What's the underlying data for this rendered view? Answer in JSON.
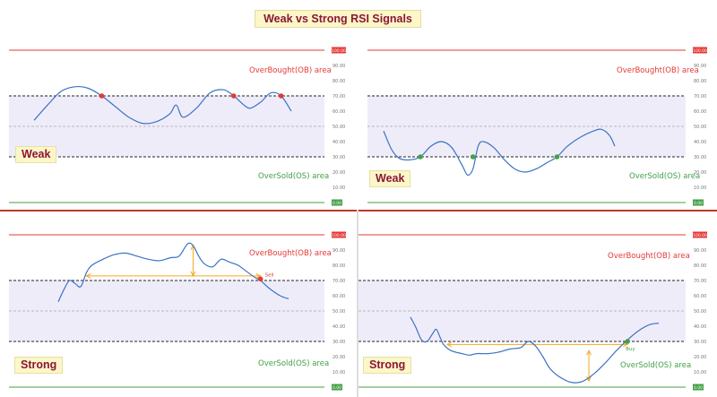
{
  "page_title": "Weak vs Strong RSI Signals",
  "colors": {
    "overbought": "#e53935",
    "oversold": "#43a047",
    "line": "#3b73c4",
    "band_fill": "#efecfa",
    "arrow": "#f5a623",
    "tag_bg": "#fbf7c7",
    "tag_text": "#8b1538"
  },
  "chart_data": [
    {
      "type": "line",
      "title": "Weak",
      "badge": "Weak",
      "ylim": [
        0,
        100
      ],
      "yticks": [
        "90.00",
        "80.00",
        "70.00",
        "60.00",
        "50.00",
        "40.00",
        "30.00",
        "20.00",
        "10.00"
      ],
      "top_label": "100.00",
      "bottom_label": "0.00",
      "ob_label": "OverBought(OB) area",
      "os_label": "OverSold(OS) area",
      "levels": {
        "overbought": 70,
        "mid": 50,
        "oversold": 30
      },
      "series": [
        {
          "values": [
            [
              0,
              54
            ],
            [
              8,
              64
            ],
            [
              16,
              73
            ],
            [
              24,
              76
            ],
            [
              32,
              75
            ],
            [
              40,
              70
            ],
            [
              48,
              63
            ],
            [
              56,
              56
            ],
            [
              64,
              52
            ],
            [
              72,
              53
            ],
            [
              80,
              58
            ],
            [
              84,
              64
            ],
            [
              88,
              56
            ],
            [
              96,
              62
            ],
            [
              104,
              72
            ],
            [
              112,
              74
            ],
            [
              118,
              70
            ],
            [
              124,
              64
            ],
            [
              128,
              62
            ],
            [
              134,
              66
            ],
            [
              140,
              72
            ],
            [
              146,
              70
            ],
            [
              152,
              60
            ]
          ]
        }
      ],
      "signals": [
        {
          "x": 40,
          "y": 70,
          "kind": "sell"
        },
        {
          "x": 118,
          "y": 70,
          "kind": "sell"
        },
        {
          "x": 146,
          "y": 70,
          "kind": "sell"
        }
      ],
      "arrows": []
    },
    {
      "type": "line",
      "title": "Weak",
      "badge": "Weak",
      "ylim": [
        0,
        100
      ],
      "yticks": [
        "90.00",
        "80.00",
        "70.00",
        "60.00",
        "50.00",
        "40.00",
        "30.00",
        "20.00",
        "10.00"
      ],
      "top_label": "100.00",
      "bottom_label": "0.00",
      "ob_label": "OverBought(OB) area",
      "os_label": "OverSold(OS) area",
      "levels": {
        "overbought": 70,
        "mid": 50,
        "oversold": 30
      },
      "series": [
        {
          "values": [
            [
              0,
              47
            ],
            [
              6,
              35
            ],
            [
              12,
              29
            ],
            [
              20,
              28
            ],
            [
              28,
              30
            ],
            [
              36,
              37
            ],
            [
              44,
              40
            ],
            [
              52,
              36
            ],
            [
              60,
              24
            ],
            [
              64,
              18
            ],
            [
              68,
              22
            ],
            [
              72,
              37
            ],
            [
              76,
              40
            ],
            [
              84,
              36
            ],
            [
              92,
              28
            ],
            [
              100,
              22
            ],
            [
              108,
              20
            ],
            [
              116,
              22
            ],
            [
              124,
              26
            ],
            [
              132,
              30
            ],
            [
              140,
              37
            ],
            [
              150,
              43
            ],
            [
              160,
              47
            ],
            [
              166,
              48
            ],
            [
              172,
              44
            ],
            [
              176,
              37
            ]
          ]
        }
      ],
      "signals": [
        {
          "x": 28,
          "y": 30,
          "kind": "buy"
        },
        {
          "x": 68,
          "y": 30,
          "kind": "buy"
        },
        {
          "x": 132,
          "y": 30,
          "kind": "buy"
        }
      ],
      "arrows": []
    },
    {
      "type": "line",
      "title": "Strong",
      "badge": "Strong",
      "ylim": [
        0,
        100
      ],
      "yticks": [
        "90.00",
        "80.00",
        "70.00",
        "60.00",
        "50.00",
        "40.00",
        "30.00",
        "20.00",
        "10.00"
      ],
      "top_label": "100.00",
      "bottom_label": "0.00",
      "ob_label": "OverBought(OB) area",
      "os_label": "OverSold(OS) area",
      "levels": {
        "overbought": 70,
        "mid": 50,
        "oversold": 30
      },
      "series": [
        {
          "values": [
            [
              0,
              56
            ],
            [
              4,
              64
            ],
            [
              8,
              70
            ],
            [
              12,
              68
            ],
            [
              16,
              66
            ],
            [
              20,
              75
            ],
            [
              24,
              80
            ],
            [
              32,
              84
            ],
            [
              40,
              87
            ],
            [
              48,
              88
            ],
            [
              56,
              86
            ],
            [
              64,
              84
            ],
            [
              72,
              83
            ],
            [
              80,
              85
            ],
            [
              86,
              86
            ],
            [
              92,
              94
            ],
            [
              96,
              93
            ],
            [
              100,
              86
            ],
            [
              104,
              81
            ],
            [
              110,
              79
            ],
            [
              116,
              84
            ],
            [
              122,
              82
            ],
            [
              128,
              80
            ],
            [
              134,
              76
            ],
            [
              140,
              72
            ],
            [
              144,
              70
            ],
            [
              150,
              65
            ],
            [
              158,
              60
            ],
            [
              164,
              58
            ]
          ]
        }
      ],
      "signals": [
        {
          "x": 144,
          "y": 71,
          "kind": "sell",
          "label": "Sell"
        }
      ],
      "arrows": [
        {
          "orientation": "horizontal",
          "x1": 20,
          "x2": 144,
          "y": 73
        },
        {
          "orientation": "vertical",
          "x": 96,
          "y1": 93,
          "y2": 73
        }
      ]
    },
    {
      "type": "line",
      "title": "Strong",
      "badge": "Strong",
      "ylim": [
        0,
        100
      ],
      "yticks": [
        "90.00",
        "80.00",
        "70.00",
        "60.00",
        "50.00",
        "40.00",
        "30.00",
        "20.00",
        "10.00"
      ],
      "top_label": "100.00",
      "bottom_label": "0.00",
      "ob_label": "OverBought(OB) area",
      "os_label": "OverSold(OS) area",
      "levels": {
        "overbought": 70,
        "mid": 50,
        "oversold": 30
      },
      "series": [
        {
          "values": [
            [
              0,
              46
            ],
            [
              6,
              39
            ],
            [
              12,
              31
            ],
            [
              18,
              30
            ],
            [
              24,
              35
            ],
            [
              28,
              38
            ],
            [
              32,
              33
            ],
            [
              36,
              28
            ],
            [
              44,
              24
            ],
            [
              56,
              22
            ],
            [
              64,
              21
            ],
            [
              72,
              22
            ],
            [
              84,
              22
            ],
            [
              96,
              23
            ],
            [
              108,
              25
            ],
            [
              120,
              26
            ],
            [
              128,
              30
            ],
            [
              136,
              27
            ],
            [
              144,
              20
            ],
            [
              152,
              12
            ],
            [
              164,
              6
            ],
            [
              176,
              3
            ],
            [
              188,
              4
            ],
            [
              200,
              9
            ],
            [
              212,
              16
            ],
            [
              224,
              24
            ],
            [
              236,
              31
            ],
            [
              248,
              37
            ],
            [
              260,
              41
            ],
            [
              270,
              42
            ]
          ]
        }
      ],
      "signals": [
        {
          "x": 236,
          "y": 30,
          "kind": "buy",
          "label": "Buy"
        }
      ],
      "arrows": [
        {
          "orientation": "horizontal",
          "x1": 40,
          "x2": 236,
          "y": 28
        },
        {
          "orientation": "vertical",
          "x": 194,
          "y1": 24,
          "y2": 4
        }
      ]
    }
  ]
}
